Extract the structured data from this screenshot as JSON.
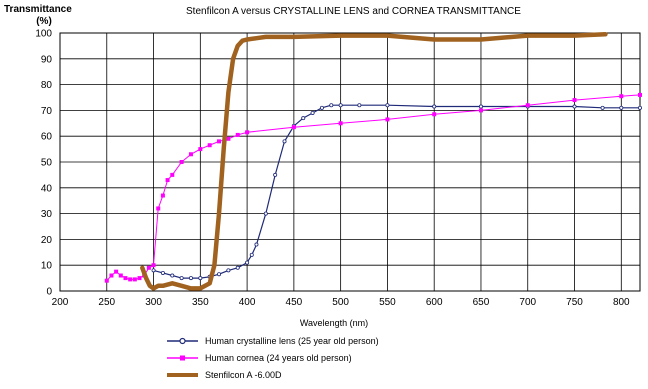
{
  "chart_data": {
    "type": "line",
    "title": "Stenfilcon A versus CRYSTALLINE LENS and CORNEA TRANSMITTANCE",
    "ylabel_line1": "Transmittance",
    "ylabel_line2": "(%)",
    "xlabel": "Wavelength (nm)",
    "xlim": [
      200,
      820
    ],
    "ylim": [
      0,
      100
    ],
    "xticks": [
      200,
      250,
      300,
      350,
      400,
      450,
      500,
      550,
      600,
      650,
      700,
      750,
      800
    ],
    "yticks": [
      0,
      10,
      20,
      30,
      40,
      50,
      60,
      70,
      80,
      90,
      100
    ],
    "grid": true,
    "legend_position": "bottom",
    "series": [
      {
        "name": "Human crystalline lens (25 year old person)",
        "color": "#1f2a78",
        "marker": "circle-open",
        "x": [
          300,
          310,
          320,
          330,
          340,
          350,
          360,
          370,
          380,
          390,
          400,
          405,
          410,
          420,
          430,
          440,
          450,
          460,
          470,
          480,
          490,
          500,
          520,
          550,
          600,
          650,
          700,
          750,
          780,
          800,
          820
        ],
        "y": [
          8,
          7,
          6,
          5,
          5,
          5,
          5.5,
          6.5,
          8,
          9,
          11,
          14,
          18,
          30,
          45,
          58,
          64,
          67,
          69,
          71,
          72,
          72,
          72,
          72,
          71.5,
          71.5,
          71.5,
          71.5,
          71,
          71,
          71
        ]
      },
      {
        "name": "Human cornea (24 years old person)",
        "color": "#ff00ff",
        "marker": "square",
        "x": [
          250,
          255,
          260,
          265,
          270,
          275,
          280,
          285,
          290,
          295,
          300,
          305,
          310,
          315,
          320,
          330,
          340,
          350,
          360,
          370,
          380,
          390,
          400,
          450,
          500,
          550,
          600,
          650,
          700,
          750,
          800,
          820
        ],
        "y": [
          4,
          6,
          7.5,
          6,
          5,
          4.5,
          4.5,
          5,
          6,
          9,
          10,
          32,
          37,
          43,
          45,
          50,
          53,
          55,
          56.5,
          58,
          59,
          60.5,
          61.5,
          63.5,
          65,
          66.5,
          68.5,
          70,
          72,
          74,
          75.5,
          76
        ]
      },
      {
        "name": "Stenfilcon A -6.00D",
        "color": "#a0621e",
        "marker": "none",
        "x": [
          288,
          292,
          296,
          300,
          305,
          310,
          320,
          330,
          340,
          350,
          360,
          365,
          370,
          375,
          380,
          385,
          390,
          395,
          400,
          410,
          420,
          450,
          500,
          550,
          600,
          650,
          700,
          750,
          783
        ],
        "y": [
          9,
          5,
          2,
          1,
          2,
          2,
          3,
          2,
          1,
          1,
          3,
          10,
          30,
          55,
          77,
          90,
          95,
          97,
          97.5,
          98,
          98.5,
          98.5,
          99,
          99,
          97.5,
          97.5,
          99,
          99,
          99.5
        ]
      }
    ]
  }
}
